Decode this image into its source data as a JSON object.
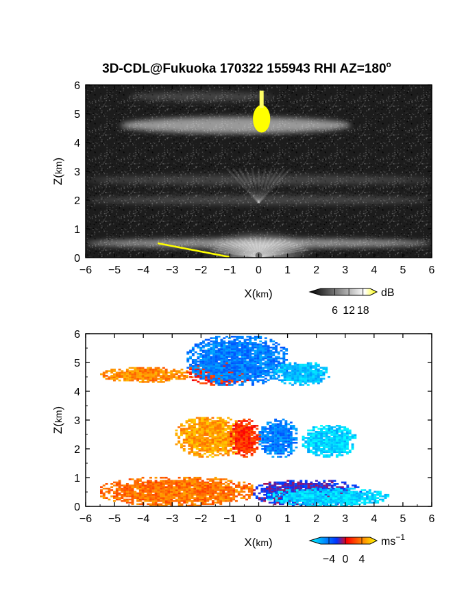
{
  "figure_title_main": "3D-CDL@Fukuoka 170322 155943 RHI AZ=180",
  "figure_title_sup": "o",
  "chart_data": [
    {
      "type": "heatmap",
      "quantity": "backscatter intensity",
      "xlabel_main": "X(",
      "xlabel_unit": "km",
      "xlabel_close": ")",
      "ylabel_main": "Z(",
      "ylabel_unit": "km",
      "ylabel_close": ")",
      "xlim": [
        -6,
        6
      ],
      "ylim": [
        0,
        6
      ],
      "xticks": [
        -6,
        -5,
        -4,
        -3,
        -2,
        -1,
        0,
        1,
        2,
        3,
        4,
        5,
        6
      ],
      "yticks": [
        0,
        1,
        2,
        3,
        4,
        5,
        6
      ],
      "colorbar": {
        "unit": "dB",
        "ticks": [
          6,
          12,
          18
        ],
        "range": [
          0,
          21
        ],
        "colors": [
          "#000000",
          "#ffffff",
          "#ffff00"
        ]
      },
      "layers": [
        {
          "z_center": 4.6,
          "x_range": [
            -4.8,
            3.2
          ],
          "note": "bright layer"
        },
        {
          "z_center": 5.6,
          "x_range": [
            -4.5,
            0.5
          ],
          "note": "faint layer"
        },
        {
          "z_center": 2.0,
          "x_range": [
            -6,
            6
          ],
          "note": "band"
        },
        {
          "z_center": 2.7,
          "x_range": [
            -6,
            6
          ],
          "note": "band"
        },
        {
          "z_center": 0.5,
          "x_range": [
            -6,
            6
          ],
          "note": "boundary layer"
        }
      ],
      "saturated_region": {
        "x": [
          -0.2,
          0.4
        ],
        "z": [
          4.3,
          5.8
        ],
        "color": "#ffff00"
      }
    },
    {
      "type": "heatmap",
      "quantity": "radial velocity",
      "xlabel_main": "X(",
      "xlabel_unit": "km",
      "xlabel_close": ")",
      "ylabel_main": "Z(",
      "ylabel_unit": "km",
      "ylabel_close": ")",
      "xlim": [
        -6,
        6
      ],
      "ylim": [
        0,
        6
      ],
      "xticks": [
        -6,
        -5,
        -4,
        -3,
        -2,
        -1,
        0,
        1,
        2,
        3,
        4,
        5,
        6
      ],
      "yticks": [
        0,
        1,
        2,
        3,
        4,
        5,
        6
      ],
      "colorbar": {
        "unit_main": "ms",
        "unit_sup": "−1",
        "ticks": [
          -4,
          0,
          4
        ],
        "tick_labels": [
          "−4",
          "0",
          "4"
        ],
        "range": [
          -6,
          6
        ],
        "colors": [
          "#00ffff",
          "#0033ff",
          "#ff0000",
          "#ffff00"
        ]
      },
      "regions": [
        {
          "x": [
            -5.5,
            -2.3
          ],
          "z": [
            4.3,
            4.8
          ],
          "velocity": 3.5
        },
        {
          "x": [
            -2.5,
            -0.2
          ],
          "z": [
            4.2,
            5.0
          ],
          "velocity": 1.5
        },
        {
          "x": [
            -2.5,
            1.0
          ],
          "z": [
            4.2,
            5.9
          ],
          "velocity": -3.0
        },
        {
          "x": [
            0.5,
            2.4
          ],
          "z": [
            4.2,
            5.0
          ],
          "velocity": -4.5
        },
        {
          "x": [
            -2.9,
            -0.5
          ],
          "z": [
            1.7,
            3.1
          ],
          "velocity": 4.0
        },
        {
          "x": [
            -1.0,
            0.0
          ],
          "z": [
            1.7,
            3.0
          ],
          "velocity": 1.5
        },
        {
          "x": [
            0.0,
            1.3
          ],
          "z": [
            1.7,
            3.0
          ],
          "velocity": -3.0
        },
        {
          "x": [
            1.5,
            3.3
          ],
          "z": [
            1.7,
            2.8
          ],
          "velocity": -5.0
        },
        {
          "x": [
            -5.5,
            -0.2
          ],
          "z": [
            0.0,
            1.0
          ],
          "velocity": 3.0
        },
        {
          "x": [
            -0.2,
            3.5
          ],
          "z": [
            0.0,
            0.9
          ],
          "velocity": -1.0
        },
        {
          "x": [
            0.3,
            4.5
          ],
          "z": [
            0.0,
            0.6
          ],
          "velocity": -5.0
        }
      ]
    }
  ]
}
